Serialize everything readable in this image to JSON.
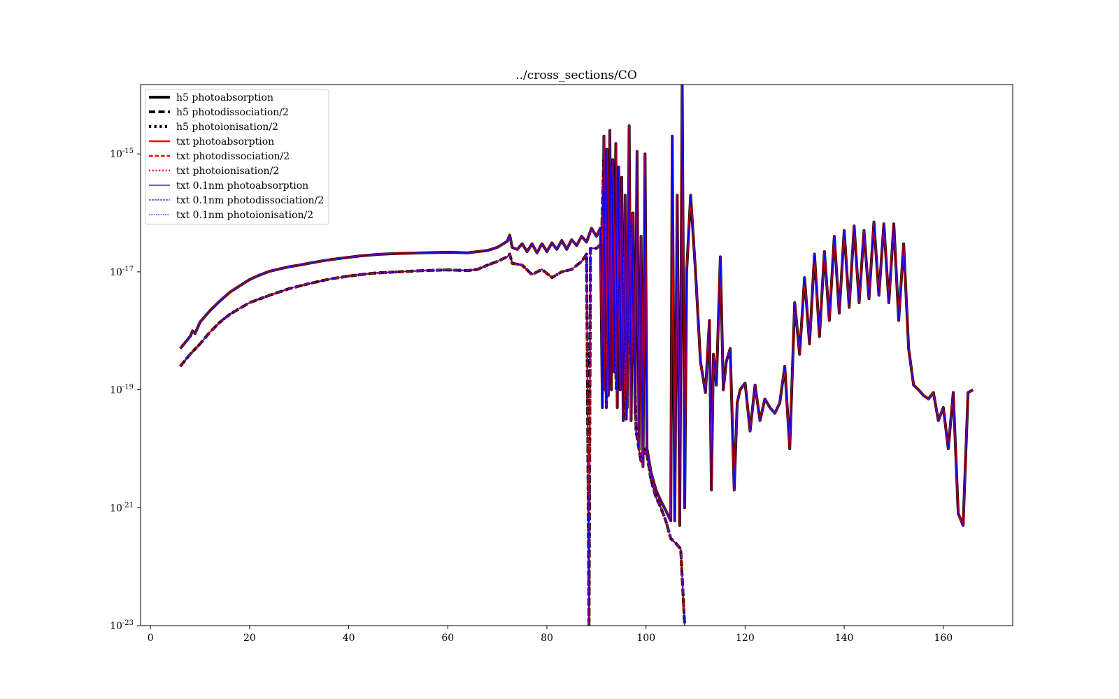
{
  "chart_data": {
    "type": "line",
    "title": "../cross_sections/CO",
    "xlabel": "",
    "ylabel": "",
    "xlim": [
      -2,
      174
    ],
    "ylim": [
      1e-23,
      1.5e-14
    ],
    "yscale": "log",
    "grid": false,
    "legend_position": "top-left",
    "x_ticks": [
      0,
      20,
      40,
      60,
      80,
      100,
      120,
      140,
      160
    ],
    "x_tick_labels": [
      "0",
      "20",
      "40",
      "60",
      "80",
      "100",
      "120",
      "140",
      "160"
    ],
    "y_ticks": [
      1e-23,
      1e-21,
      1e-19,
      1e-17,
      1e-15
    ],
    "y_tick_labels": [
      {
        "base": "10",
        "exp": "-23"
      },
      {
        "base": "10",
        "exp": "-21"
      },
      {
        "base": "10",
        "exp": "-19"
      },
      {
        "base": "10",
        "exp": "-17"
      },
      {
        "base": "10",
        "exp": "-15"
      }
    ],
    "series": [
      {
        "name": "h5 photoabsorption",
        "color": "#000000",
        "style": "solid",
        "width": 4,
        "group": "absorption"
      },
      {
        "name": "h5 photodissociation/2",
        "color": "#000000",
        "style": "dashed",
        "width": 4,
        "group": "dissociation"
      },
      {
        "name": "h5 photoionisation/2",
        "color": "#000000",
        "style": "dotted",
        "width": 4,
        "group": "ionisation"
      },
      {
        "name": "txt photoabsorption",
        "color": "#ff0000",
        "style": "solid",
        "width": 2.5,
        "group": "absorption"
      },
      {
        "name": "txt photodissociation/2",
        "color": "#ff0000",
        "style": "dashed",
        "width": 2.5,
        "group": "dissociation"
      },
      {
        "name": "txt photoionisation/2",
        "color": "#ff0000",
        "style": "dotted",
        "width": 2.5,
        "group": "ionisation"
      },
      {
        "name": "txt 0.1nm photoabsorption",
        "color": "#0000ff",
        "style": "solid",
        "width": 1.2,
        "group": "absorption"
      },
      {
        "name": "txt 0.1nm photodissociation/2",
        "color": "#0000ff",
        "style": "dashed",
        "width": 1.2,
        "group": "dissociation"
      },
      {
        "name": "txt 0.1nm photoionisation/2",
        "color": "#0000ff",
        "style": "dotted",
        "width": 1.2,
        "group": "ionisation"
      }
    ],
    "curves": {
      "absorption": [
        [
          6,
          5e-19
        ],
        [
          8,
          8e-19
        ],
        [
          8.5,
          1e-18
        ],
        [
          9,
          9e-19
        ],
        [
          10,
          1.4e-18
        ],
        [
          12,
          2.2e-18
        ],
        [
          14,
          3.2e-18
        ],
        [
          16,
          4.5e-18
        ],
        [
          18,
          5.8e-18
        ],
        [
          20,
          7.4e-18
        ],
        [
          22,
          8.8e-18
        ],
        [
          24,
          1.02e-17
        ],
        [
          26,
          1.12e-17
        ],
        [
          28,
          1.22e-17
        ],
        [
          30,
          1.3e-17
        ],
        [
          32,
          1.4e-17
        ],
        [
          35,
          1.55e-17
        ],
        [
          38,
          1.68e-17
        ],
        [
          42,
          1.85e-17
        ],
        [
          46,
          1.98e-17
        ],
        [
          50,
          2.05e-17
        ],
        [
          55,
          2.1e-17
        ],
        [
          60,
          2.15e-17
        ],
        [
          64,
          2.1e-17
        ],
        [
          66,
          2.2e-17
        ],
        [
          68,
          2.3e-17
        ],
        [
          70,
          2.6e-17
        ],
        [
          72,
          3.3e-17
        ],
        [
          72.5,
          4.2e-17
        ],
        [
          73,
          2.6e-17
        ],
        [
          74,
          2.4e-17
        ],
        [
          75,
          3e-17
        ],
        [
          76,
          2.2e-17
        ],
        [
          77,
          3e-17
        ],
        [
          78,
          2.1e-17
        ],
        [
          79,
          3e-17
        ],
        [
          80,
          2.2e-17
        ],
        [
          81,
          3.1e-17
        ],
        [
          82,
          2.4e-17
        ],
        [
          83,
          3.4e-17
        ],
        [
          84,
          2.4e-17
        ],
        [
          85,
          3.5e-17
        ],
        [
          86,
          2.8e-17
        ],
        [
          87,
          4e-17
        ],
        [
          88,
          3.2e-17
        ],
        [
          89,
          5.5e-17
        ],
        [
          90,
          4e-17
        ],
        [
          90.8,
          5.5e-17
        ],
        [
          91.2,
          5e-20
        ],
        [
          91.5,
          2e-15
        ],
        [
          91.8,
          1e-19
        ],
        [
          92.1,
          1.2e-15
        ],
        [
          92.4,
          8e-20
        ],
        [
          92.7,
          2.5e-15
        ],
        [
          93.0,
          1e-19
        ],
        [
          93.3,
          8e-16
        ],
        [
          93.6,
          2e-19
        ],
        [
          93.9,
          1.5e-15
        ],
        [
          94.2,
          5e-20
        ],
        [
          94.5,
          6e-16
        ],
        [
          94.8,
          1e-19
        ],
        [
          95.1,
          4e-16
        ],
        [
          95.4,
          3e-20
        ],
        [
          95.8,
          2e-16
        ],
        [
          96.2,
          5e-20
        ],
        [
          96.6,
          3e-15
        ],
        [
          97.0,
          3e-20
        ],
        [
          97.4,
          1e-16
        ],
        [
          97.8,
          4e-20
        ],
        [
          98.2,
          1.1e-15
        ],
        [
          98.6,
          1e-20
        ],
        [
          99.0,
          4e-17
        ],
        [
          99.4,
          5e-21
        ],
        [
          99.8,
          1e-15
        ],
        [
          100.2,
          1e-20
        ],
        [
          101,
          4e-21
        ],
        [
          102,
          2e-21
        ],
        [
          103,
          1.3e-21
        ],
        [
          104,
          9e-22
        ],
        [
          105,
          6e-22
        ],
        [
          105.3,
          2e-15
        ],
        [
          105.8,
          6e-22
        ],
        [
          106.3,
          2e-16
        ],
        [
          106.8,
          5e-22
        ],
        [
          107.3,
          1.5e-14
        ],
        [
          107.8,
          1e-21
        ],
        [
          108.2,
          1e-17
        ],
        [
          109,
          2e-16
        ],
        [
          110,
          1e-17
        ],
        [
          111,
          3e-19
        ],
        [
          112,
          9e-20
        ],
        [
          112.8,
          1.5e-18
        ],
        [
          113.2,
          2e-21
        ],
        [
          113.6,
          4e-19
        ],
        [
          114.2,
          1.2e-19
        ],
        [
          115,
          1.8e-17
        ],
        [
          115.6,
          1e-19
        ],
        [
          116.2,
          3e-19
        ],
        [
          117,
          5e-19
        ],
        [
          117.8,
          2e-21
        ],
        [
          118.4,
          6e-20
        ],
        [
          119,
          1e-19
        ],
        [
          120,
          1.3e-19
        ],
        [
          121,
          2e-20
        ],
        [
          122,
          1.2e-19
        ],
        [
          123,
          3e-20
        ],
        [
          124,
          7e-20
        ],
        [
          125,
          5e-20
        ],
        [
          126,
          4e-20
        ],
        [
          127,
          6e-20
        ],
        [
          128,
          2.5e-19
        ],
        [
          129,
          1e-20
        ],
        [
          130,
          3e-18
        ],
        [
          131,
          4e-19
        ],
        [
          132,
          8e-18
        ],
        [
          133,
          6e-19
        ],
        [
          134,
          2e-17
        ],
        [
          135,
          8e-19
        ],
        [
          136,
          2.2e-17
        ],
        [
          137,
          1.5e-18
        ],
        [
          138,
          4e-17
        ],
        [
          139,
          2e-18
        ],
        [
          140,
          5e-17
        ],
        [
          141,
          2.5e-18
        ],
        [
          142,
          6e-17
        ],
        [
          143,
          3e-18
        ],
        [
          144,
          5e-17
        ],
        [
          145,
          3.5e-18
        ],
        [
          146,
          7e-17
        ],
        [
          147,
          4e-18
        ],
        [
          148,
          6.5e-17
        ],
        [
          149,
          3e-18
        ],
        [
          150,
          6.5e-17
        ],
        [
          151,
          1.5e-18
        ],
        [
          152,
          3e-17
        ],
        [
          153,
          5e-19
        ],
        [
          154,
          1.2e-19
        ],
        [
          155,
          1e-19
        ],
        [
          156,
          8e-20
        ],
        [
          157,
          7e-20
        ],
        [
          158,
          9e-20
        ],
        [
          159,
          3e-20
        ],
        [
          160,
          5e-20
        ],
        [
          161,
          1e-20
        ],
        [
          162,
          9e-20
        ],
        [
          163,
          8e-22
        ],
        [
          164,
          5e-22
        ],
        [
          165,
          9e-20
        ],
        [
          166,
          1e-19
        ]
      ],
      "dissociation": [
        [
          6,
          2.5e-19
        ],
        [
          8,
          4e-19
        ],
        [
          10,
          6e-19
        ],
        [
          12,
          9.5e-19
        ],
        [
          14,
          1.4e-18
        ],
        [
          16,
          1.9e-18
        ],
        [
          18,
          2.4e-18
        ],
        [
          20,
          3e-18
        ],
        [
          24,
          4e-18
        ],
        [
          28,
          5.2e-18
        ],
        [
          32,
          6.3e-18
        ],
        [
          36,
          7.5e-18
        ],
        [
          40,
          8.5e-18
        ],
        [
          45,
          9.5e-18
        ],
        [
          50,
          1e-17
        ],
        [
          55,
          1.05e-17
        ],
        [
          60,
          1.08e-17
        ],
        [
          64,
          1.05e-17
        ],
        [
          66,
          1.1e-17
        ],
        [
          68,
          1.3e-17
        ],
        [
          70,
          1.5e-17
        ],
        [
          72,
          1.8e-17
        ],
        [
          72.5,
          2e-17
        ],
        [
          73,
          1.4e-17
        ],
        [
          75,
          1.3e-17
        ],
        [
          77,
          9e-18
        ],
        [
          79,
          1.1e-17
        ],
        [
          81,
          8e-18
        ],
        [
          83,
          1e-17
        ],
        [
          85,
          1.1e-17
        ],
        [
          87,
          1.5e-17
        ],
        [
          88,
          2e-17
        ],
        [
          88.5,
          1e-23
        ],
        [
          88.8,
          2.5e-17
        ],
        [
          90,
          2.5e-17
        ],
        [
          91,
          3e-17
        ],
        [
          91.5,
          1e-15
        ],
        [
          92,
          5e-20
        ],
        [
          93,
          6e-16
        ],
        [
          94,
          1e-19
        ],
        [
          95,
          2e-16
        ],
        [
          96,
          3e-20
        ],
        [
          97,
          1e-16
        ],
        [
          98,
          2e-20
        ],
        [
          99,
          6e-21
        ],
        [
          100,
          1e-20
        ],
        [
          101,
          3e-21
        ],
        [
          102,
          1.5e-21
        ],
        [
          103,
          1e-21
        ],
        [
          104,
          6e-22
        ],
        [
          105,
          3e-22
        ],
        [
          106,
          2.5e-22
        ],
        [
          107,
          2e-22
        ],
        [
          107.8,
          1e-23
        ]
      ]
    }
  }
}
